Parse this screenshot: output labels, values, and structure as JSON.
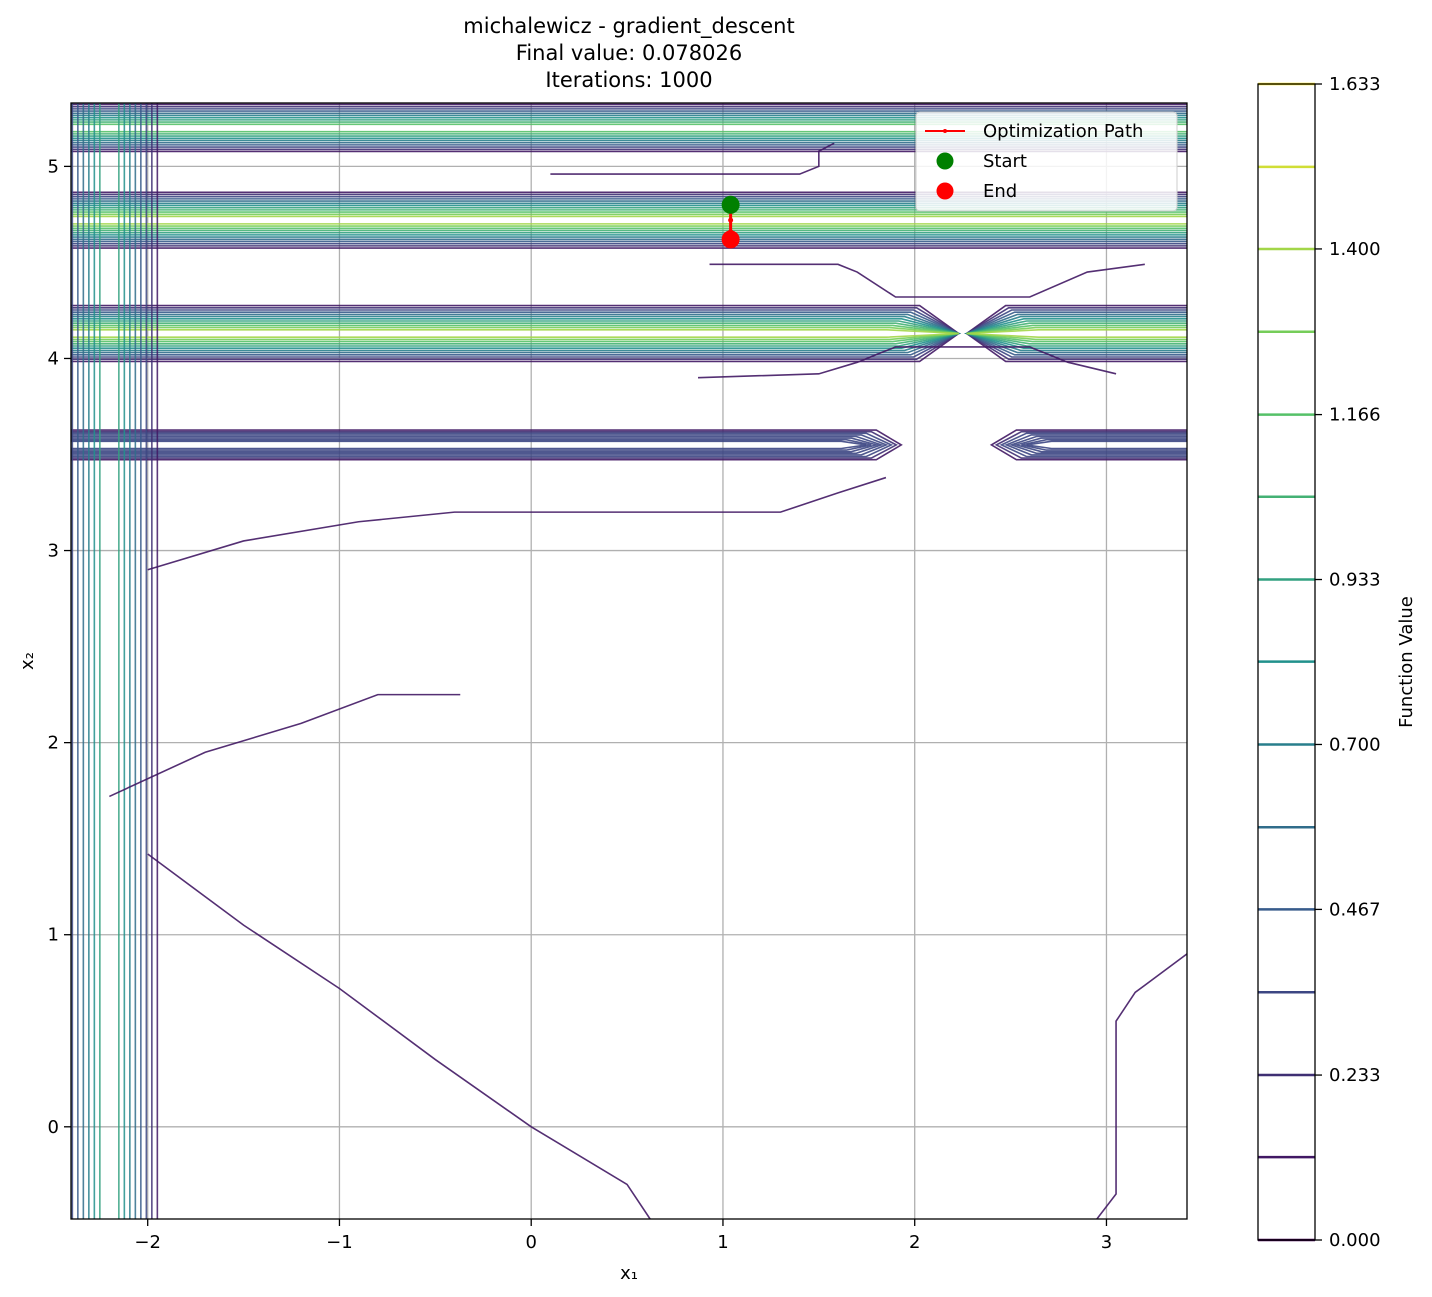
{
  "chart_data": {
    "type": "contour",
    "title_lines": [
      "michalewicz - gradient_descent",
      "Final value: 0.078026",
      "Iterations: 1000"
    ],
    "xlabel": "x₁",
    "ylabel": "x₂",
    "xlim": [
      -2.4,
      3.42
    ],
    "ylim": [
      -0.48,
      5.33
    ],
    "xticks": [
      -2,
      -1,
      0,
      1,
      2,
      3
    ],
    "yticks": [
      0,
      1,
      2,
      3,
      4,
      5
    ],
    "xtick_labels": [
      "−2",
      "−1",
      "0",
      "1",
      "2",
      "3"
    ],
    "ytick_labels": [
      "0",
      "1",
      "2",
      "3",
      "4",
      "5"
    ],
    "grid": true,
    "legend_position": "top-right",
    "legend": [
      {
        "label": "Optimization Path",
        "kind": "line",
        "color": "#ff0000"
      },
      {
        "label": "Start",
        "kind": "marker",
        "color": "#008000"
      },
      {
        "label": "End",
        "kind": "marker",
        "color": "#ff0000"
      }
    ],
    "path": {
      "x": [
        1.04,
        1.04,
        1.04,
        1.04
      ],
      "y": [
        4.8,
        4.72,
        4.66,
        4.62
      ]
    },
    "start": {
      "x": 1.04,
      "y": 4.8
    },
    "end": {
      "x": 1.04,
      "y": 4.62
    },
    "colorbar": {
      "label": "Function Value",
      "min": 0.0,
      "max": 1.633,
      "tick_values": [
        0.0,
        0.233,
        0.467,
        0.7,
        0.933,
        1.166,
        1.4,
        1.633
      ],
      "tick_labels": [
        "0.000",
        "0.233",
        "0.467",
        "0.700",
        "0.933",
        "1.166",
        "1.400",
        "1.633"
      ],
      "levels": [
        0.0,
        0.117,
        0.233,
        0.35,
        0.467,
        0.583,
        0.7,
        0.817,
        0.933,
        1.05,
        1.166,
        1.283,
        1.4,
        1.516,
        1.633
      ],
      "colormap": "viridis"
    },
    "contours": {
      "horizontal_bands": [
        {
          "y": 5.2,
          "x_from": -2.4,
          "x_to": 3.42,
          "peak_x": -2.2,
          "max_level": 10
        },
        {
          "y": 4.72,
          "x_from": -2.4,
          "x_to": 3.42,
          "peak_x": -2.2,
          "max_level": 12
        },
        {
          "y": 4.13,
          "x_from": -2.4,
          "x_to": 3.42,
          "peak_x": -2.2,
          "max_level": 12,
          "gap_x": 2.25
        },
        {
          "y": 3.55,
          "x_from": -2.4,
          "x_to": 1.93,
          "peak_x": -2.2,
          "max_level": 8,
          "right_from": 2.4
        }
      ],
      "vertical_bands": [
        {
          "x": -2.2,
          "y_from": -0.48,
          "y_to": 5.33,
          "max_level": 8
        }
      ]
    }
  }
}
